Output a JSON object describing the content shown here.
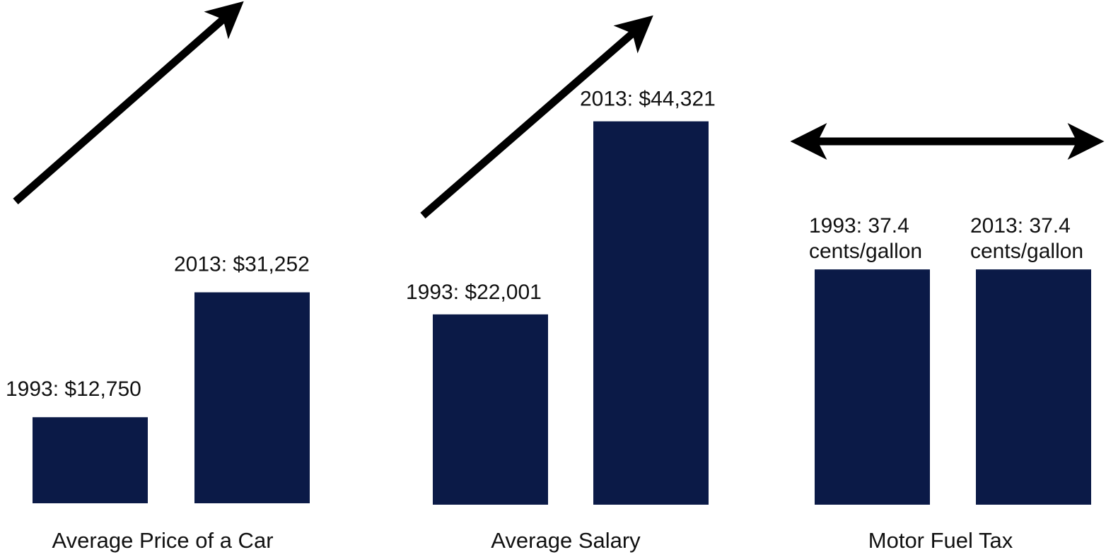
{
  "colors": {
    "bar": "#0b1a47",
    "arrow": "#000000",
    "text": "#111111"
  },
  "chart_data": [
    {
      "type": "bar",
      "title": "",
      "xlabel": "Average Price of a Car",
      "ylabel": "",
      "categories": [
        "1993",
        "2013"
      ],
      "values": [
        12750,
        31252
      ],
      "data_labels": [
        [
          "1993: $12,750"
        ],
        [
          "2013: $31,252"
        ]
      ],
      "trend_arrow": "up-right"
    },
    {
      "type": "bar",
      "title": "",
      "xlabel": "Average Salary",
      "ylabel": "",
      "categories": [
        "1993",
        "2013"
      ],
      "values": [
        22001,
        44321
      ],
      "data_labels": [
        [
          "1993: $22,001"
        ],
        [
          "2013: $44,321"
        ]
      ],
      "trend_arrow": "up-right"
    },
    {
      "type": "bar",
      "title": "",
      "xlabel": "Motor Fuel Tax",
      "ylabel": "",
      "categories": [
        "1993",
        "2013"
      ],
      "values": [
        37.4,
        37.4
      ],
      "data_labels": [
        [
          "1993: 37.4",
          "cents/gallon"
        ],
        [
          "2013: 37.4",
          "cents/gallon"
        ]
      ],
      "trend_arrow": "horizontal-double"
    }
  ]
}
